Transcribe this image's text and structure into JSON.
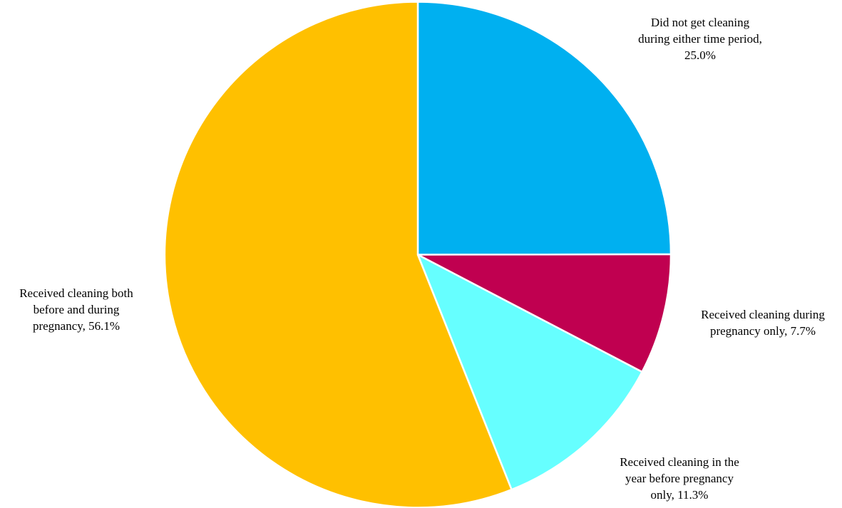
{
  "chart_data": {
    "type": "pie",
    "start_angle_deg": 0,
    "direction": "clockwise",
    "slices": [
      {
        "label": "Did not get cleaning during either time period",
        "value": 25.0,
        "value_text": "25.0%",
        "color": "#00B0F0",
        "label_lines": [
          "Did not get cleaning",
          "during either time period,",
          "25.0%"
        ]
      },
      {
        "label": "Received cleaning during pregnancy only",
        "value": 7.7,
        "value_text": "7.7%",
        "color": "#C00050",
        "label_lines": [
          "Received cleaning during",
          "pregnancy only, 7.7%"
        ]
      },
      {
        "label": "Received cleaning in the year before pregnancy only",
        "value": 11.3,
        "value_text": "11.3%",
        "color": "#66FFFF",
        "label_lines": [
          "Received cleaning in the",
          "year before pregnancy",
          "only, 11.3%"
        ]
      },
      {
        "label": "Received cleaning both before and during pregnancy",
        "value": 56.1,
        "value_text": "56.1%",
        "color": "#FFC000",
        "label_lines": [
          "Received cleaning both",
          "before and during",
          "pregnancy, 56.1%"
        ]
      }
    ]
  }
}
